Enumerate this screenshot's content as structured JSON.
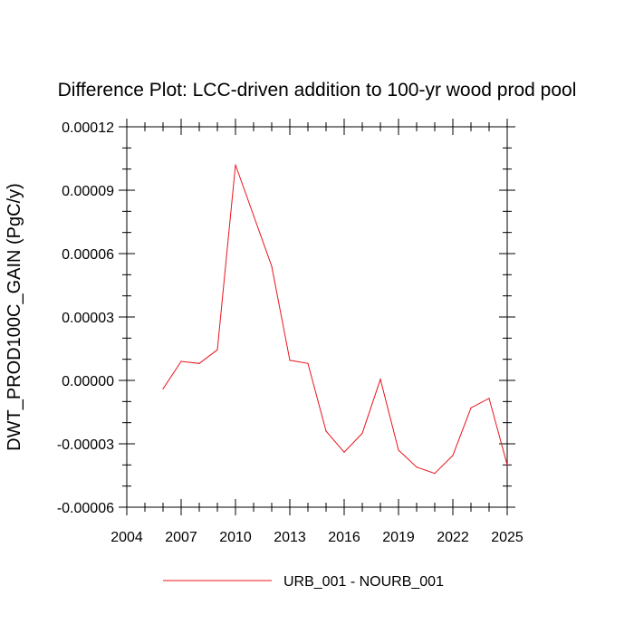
{
  "chart_data": {
    "type": "line",
    "title": "Difference Plot: LCC-driven addition to 100-yr wood prod pool",
    "xlabel": "",
    "ylabel": "DWT_PROD100C_GAIN  (PgC/y)",
    "xlim": [
      2004,
      2025
    ],
    "ylim": [
      -6e-05,
      0.00012
    ],
    "x_ticks": [
      2004,
      2007,
      2010,
      2013,
      2016,
      2019,
      2022,
      2025
    ],
    "y_ticks": [
      -6e-05,
      -3e-05,
      0.0,
      3e-05,
      6e-05,
      9e-05,
      0.00012
    ],
    "y_tick_labels": [
      "-0.00006",
      "-0.00003",
      "0.00000",
      "0.00003",
      "0.00006",
      "0.00009",
      "0.00012"
    ],
    "grid": false,
    "legend_position": "bottom",
    "series": [
      {
        "name": "URB_001 - NOURB_001",
        "color": "#e8141c",
        "x": [
          2006,
          2007,
          2008,
          2009,
          2010,
          2011,
          2012,
          2013,
          2014,
          2015,
          2016,
          2017,
          2018,
          2019,
          2020,
          2021,
          2022,
          2023,
          2024,
          2025
        ],
        "y": [
          -4e-06,
          9e-06,
          8e-06,
          1.45e-05,
          0.000102,
          7.8e-05,
          5.4e-05,
          9.5e-06,
          8e-06,
          -2.4e-05,
          -3.4e-05,
          -2.5e-05,
          5e-07,
          -3.3e-05,
          -4.1e-05,
          -4.4e-05,
          -3.55e-05,
          -1.3e-05,
          -8.5e-06,
          -4e-05
        ]
      }
    ]
  }
}
